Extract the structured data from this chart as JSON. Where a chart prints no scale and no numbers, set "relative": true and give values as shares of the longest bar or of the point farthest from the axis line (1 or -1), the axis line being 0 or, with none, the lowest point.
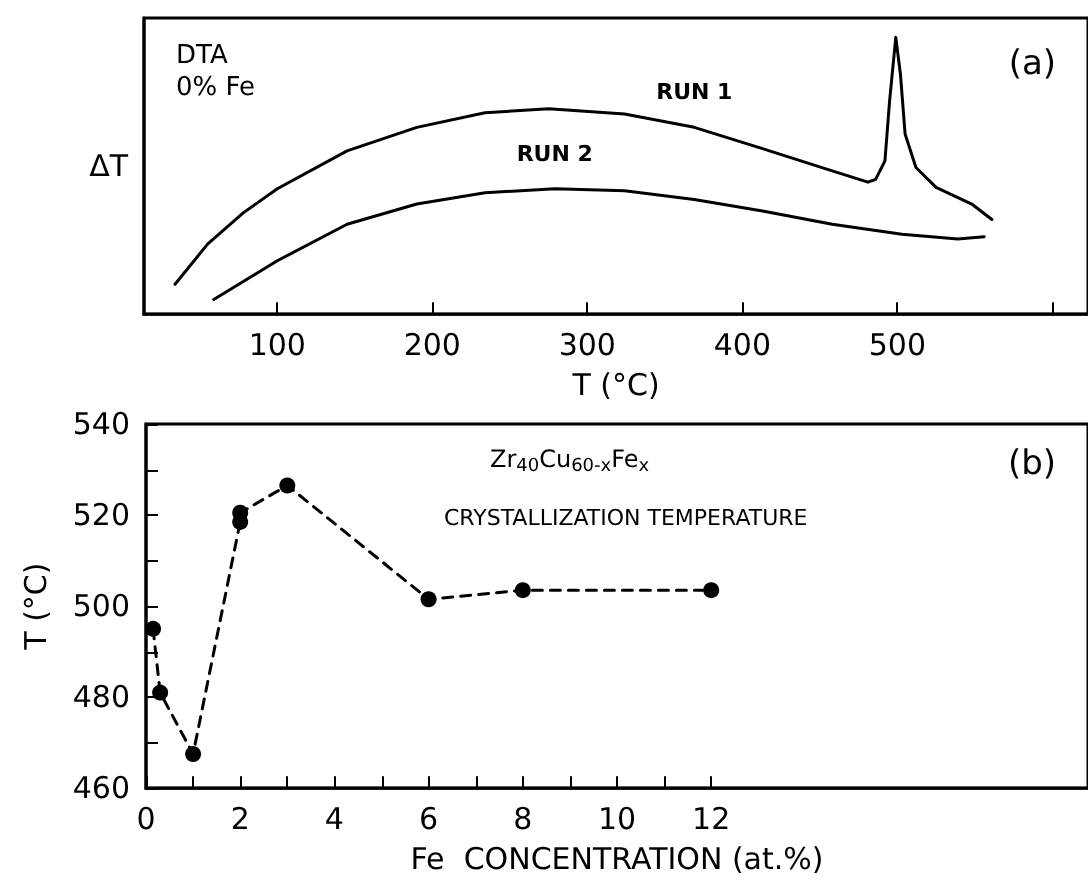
{
  "chart_data": [
    {
      "type": "line",
      "xlabel": "T (°C)",
      "ylabel": "ΔT",
      "relative": true,
      "annotations": [
        "DTA\n0% Fe",
        "(a)"
      ],
      "xlim": [
        14,
        623
      ],
      "xticks": [
        100,
        200,
        300,
        400,
        500,
        {
          "value": 600,
          "label": null
        }
      ],
      "grid": false,
      "legend": false,
      "marker": "none",
      "line_style": "solid",
      "series": [
        {
          "name": "RUN 1",
          "color": "#000000",
          "x": [
            34,
            55,
            78,
            100,
            145,
            190,
            234,
            275,
            324,
            369,
            413,
            458,
            481,
            486,
            492,
            495,
            499,
            502,
            505,
            512,
            525,
            548,
            561
          ],
          "values": [
            0.108,
            0.253,
            0.366,
            0.453,
            0.59,
            0.675,
            0.728,
            0.742,
            0.723,
            0.675,
            0.598,
            0.518,
            0.477,
            0.487,
            0.554,
            0.771,
            1,
            0.867,
            0.651,
            0.53,
            0.458,
            0.398,
            0.342
          ]
        },
        {
          "name": "RUN 2",
          "color": "#000000",
          "x": [
            59,
            100,
            145,
            190,
            234,
            279,
            324,
            369,
            413,
            458,
            503,
            539,
            556
          ],
          "values": [
            0.053,
            0.193,
            0.325,
            0.398,
            0.439,
            0.453,
            0.446,
            0.414,
            0.373,
            0.325,
            0.289,
            0.272,
            0.28
          ]
        }
      ]
    },
    {
      "type": "line",
      "xlabel": "Fe  CONCENTRATION (at.%)",
      "ylabel": "T (°C)",
      "annotations": [
        "Zr$_{40}$Cu$_{60-x}$Fe$_{x}$",
        "CRYSTALLIZATION TEMPERATURE",
        "(b)"
      ],
      "xlim": [
        0,
        20
      ],
      "xticks": [
        0,
        {
          "value": 1,
          "label": null
        },
        2,
        {
          "value": 3,
          "label": null
        },
        4,
        {
          "value": 5,
          "label": null
        },
        6,
        {
          "value": 7,
          "label": null
        },
        8,
        {
          "value": 9,
          "label": null
        },
        10,
        {
          "value": 11,
          "label": null
        },
        12
      ],
      "ylim": [
        460,
        540
      ],
      "yticks": [
        460,
        {
          "value": 470,
          "label": null
        },
        480,
        {
          "value": 490,
          "label": null
        },
        500,
        {
          "value": 510,
          "label": null
        },
        520,
        {
          "value": 530,
          "label": null
        },
        540
      ],
      "grid": false,
      "legend": false,
      "marker": "circle",
      "line_style": "dashed",
      "series": [
        {
          "color": "#000000",
          "x": [
            0.15,
            0.3,
            1,
            2,
            2,
            3,
            6,
            8,
            12
          ],
          "values": [
            495,
            481,
            467.5,
            518.5,
            520.5,
            526.5,
            501.5,
            503.5,
            503.5
          ]
        }
      ]
    }
  ]
}
